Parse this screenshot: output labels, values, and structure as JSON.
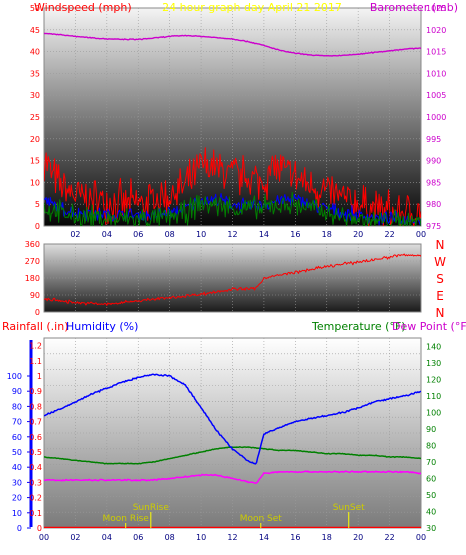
{
  "chart_data": [
    {
      "id": "top",
      "type": "line",
      "title": "24 hour graph day   April 21 2017",
      "left_axis_label": "Windspeed (mph)",
      "right_axis_label": "Barometer (mb)",
      "left_ticks": [
        "0",
        "5",
        "10",
        "15",
        "20",
        "25",
        "30",
        "35",
        "40",
        "45",
        "50"
      ],
      "right_ticks": [
        "975",
        "980",
        "985",
        "990",
        "995",
        "1000",
        "1005",
        "1010",
        "1015",
        "1020",
        "1025"
      ],
      "x_ticks": [
        "02",
        "04",
        "06",
        "08",
        "10",
        "12",
        "14",
        "16",
        "18",
        "20",
        "22",
        "00"
      ],
      "left_range": [
        0,
        50
      ],
      "right_range": [
        975,
        1025
      ],
      "x_range": [
        0,
        24
      ],
      "grid": true,
      "series": [
        {
          "key": "barometer",
          "axis": "right",
          "color": "#cc00cc",
          "width": 1.4,
          "noise": 0.1,
          "x": [
            0,
            1,
            2,
            3,
            4,
            5,
            6,
            7,
            8,
            9,
            10,
            11,
            12,
            13,
            14,
            15,
            16,
            17,
            18,
            19,
            20,
            21,
            22,
            23,
            24
          ],
          "y": [
            1019.2,
            1018.9,
            1018.5,
            1018.2,
            1017.9,
            1017.8,
            1017.8,
            1018.1,
            1018.5,
            1018.7,
            1018.5,
            1018.2,
            1017.9,
            1017.3,
            1016.4,
            1015.3,
            1014.6,
            1014.2,
            1014.0,
            1014.1,
            1014.4,
            1014.8,
            1015.2,
            1015.6,
            1015.8
          ]
        },
        {
          "key": "wind_gust",
          "axis": "left",
          "color": "#ff0000",
          "width": 1,
          "noise": 4.5,
          "x": [
            0,
            0.5,
            1,
            2,
            3,
            4,
            5,
            6,
            7,
            8,
            9,
            9.6,
            10,
            11,
            12,
            13,
            14,
            14.6,
            15,
            16,
            17,
            18,
            19,
            20,
            21,
            22,
            23,
            24
          ],
          "y": [
            16,
            12,
            9,
            7,
            6,
            6,
            5,
            5,
            6,
            7,
            9,
            11,
            14,
            13,
            12,
            11,
            10,
            14,
            13,
            11,
            9,
            8,
            6,
            5,
            4,
            3,
            3,
            3
          ]
        },
        {
          "key": "wind_avg",
          "axis": "left",
          "color": "#0000ff",
          "width": 1,
          "noise": 1.5,
          "x": [
            0,
            1,
            2,
            3,
            4,
            5,
            6,
            7,
            8,
            9,
            10,
            11,
            12,
            13,
            14,
            15,
            16,
            17,
            18,
            19,
            20,
            21,
            22,
            23,
            24
          ],
          "y": [
            6,
            4,
            3,
            3,
            2.5,
            2.5,
            2.5,
            2.5,
            3,
            4,
            6,
            6,
            5,
            4.5,
            5,
            6,
            6,
            5,
            4,
            3,
            2.5,
            2,
            1.5,
            1.5,
            1.5
          ]
        },
        {
          "key": "wind_speed",
          "axis": "left",
          "color": "#008000",
          "width": 1,
          "noise": 2.5,
          "x": [
            0,
            1,
            2,
            3,
            4,
            5,
            6,
            7,
            8,
            9,
            10,
            11,
            12,
            13,
            14,
            15,
            16,
            17,
            18,
            19,
            20,
            21,
            22,
            23,
            24
          ],
          "y": [
            4,
            3,
            2,
            2,
            1.5,
            1.5,
            1.5,
            1.5,
            2,
            3,
            5,
            5,
            4,
            4,
            4,
            5,
            5,
            4,
            3,
            2,
            1.5,
            1,
            1,
            1,
            1
          ]
        }
      ]
    },
    {
      "id": "dir",
      "type": "line",
      "left_ticks": [
        "0",
        "90",
        "180",
        "270",
        "360"
      ],
      "right_ticks": [
        "N",
        "E",
        "S",
        "W",
        "N"
      ],
      "x_ticks": [],
      "left_range": [
        0,
        360
      ],
      "x_range": [
        0,
        24
      ],
      "grid": true,
      "series": [
        {
          "key": "wind_dir",
          "axis": "left",
          "color": "#ff0000",
          "width": 1,
          "noise": 8,
          "x": [
            0,
            2,
            4,
            6,
            8,
            10,
            12,
            13.5,
            14,
            16,
            18,
            20,
            22,
            22.5,
            23,
            24
          ],
          "y": [
            70,
            50,
            40,
            60,
            75,
            95,
            120,
            125,
            180,
            210,
            240,
            265,
            290,
            300,
            300,
            300
          ]
        }
      ]
    },
    {
      "id": "bottom",
      "type": "line",
      "left_label_1": "Rainfall (.in)",
      "left_label_2": "Humidity (%)",
      "right_label_1": "Temperature (°F)",
      "right_label_2": "Dew Point (°F)",
      "humidity_ticks": [
        "0",
        "10",
        "20",
        "30",
        "40",
        "50",
        "60",
        "70",
        "80",
        "90",
        "100"
      ],
      "rain_ticks": [
        "0",
        "0.1",
        "0.2",
        "0.3",
        "0.4",
        "0.5",
        "0.6",
        "0.7",
        "0.8",
        "0.9",
        "1",
        "1.1",
        "1.2"
      ],
      "temp_ticks": [
        "30",
        "40",
        "50",
        "60",
        "70",
        "80",
        "90",
        "100",
        "110",
        "120",
        "130",
        "140"
      ],
      "x_ticks": [
        "00",
        "02",
        "04",
        "06",
        "08",
        "10",
        "12",
        "14",
        "16",
        "18",
        "20",
        "22",
        "00"
      ],
      "left_range": [
        0,
        1.25
      ],
      "right_range": [
        30,
        145
      ],
      "x_range": [
        0,
        24
      ],
      "grid": true,
      "annotations": [
        {
          "label": "Moon Rise",
          "x": 5.2,
          "level": "low"
        },
        {
          "label": "SunRise",
          "x": 6.8,
          "level": "high"
        },
        {
          "label": "Moon Set",
          "x": 13.8,
          "level": "low"
        },
        {
          "label": "SunSet",
          "x": 19.4,
          "level": "high"
        }
      ],
      "series": [
        {
          "key": "humidity",
          "axis": "left",
          "color": "#0000ff",
          "width": 1.5,
          "noise": 0.005,
          "x": [
            0,
            1,
            2,
            3,
            4,
            5,
            6,
            7,
            8,
            9,
            10,
            11,
            12,
            13,
            13.5,
            14,
            15,
            16,
            17,
            18,
            19,
            20,
            21,
            22,
            23,
            24
          ],
          "y": [
            0.74,
            0.78,
            0.83,
            0.88,
            0.92,
            0.96,
            0.99,
            1.01,
            1.0,
            0.94,
            0.79,
            0.64,
            0.52,
            0.44,
            0.42,
            0.62,
            0.66,
            0.7,
            0.72,
            0.74,
            0.76,
            0.79,
            0.83,
            0.85,
            0.87,
            0.9
          ]
        },
        {
          "key": "temperature",
          "axis": "right",
          "color": "#008000",
          "width": 1.5,
          "noise": 0.2,
          "x": [
            0,
            1,
            2,
            3,
            4,
            5,
            6,
            7,
            8,
            9,
            10,
            11,
            12,
            13,
            14,
            15,
            16,
            17,
            18,
            19,
            20,
            21,
            22,
            23,
            24
          ],
          "y": [
            73,
            72,
            71,
            70,
            69,
            69,
            69,
            70,
            72,
            74,
            76,
            78,
            79,
            79,
            78,
            77,
            77,
            76,
            75,
            75,
            74,
            74,
            73,
            73,
            72
          ]
        },
        {
          "key": "dew_point",
          "axis": "right",
          "color": "#ff00ff",
          "width": 1.5,
          "noise": 0.4,
          "x": [
            0,
            1,
            2,
            3,
            4,
            5,
            6,
            7,
            8,
            9,
            10,
            11,
            12,
            13,
            13.5,
            14,
            15,
            16,
            17,
            18,
            19,
            20,
            21,
            22,
            23,
            24
          ],
          "y": [
            59,
            59,
            59,
            59,
            59,
            59,
            59,
            59,
            60,
            61,
            62,
            62,
            60,
            58,
            57,
            63,
            64,
            64,
            64,
            64,
            64,
            64,
            64,
            64,
            64,
            63
          ]
        },
        {
          "key": "rainfall",
          "axis": "left",
          "color": "#ff0000",
          "width": 2.5,
          "noise": 0,
          "x": [
            0,
            24
          ],
          "y": [
            0,
            0
          ]
        }
      ]
    }
  ]
}
